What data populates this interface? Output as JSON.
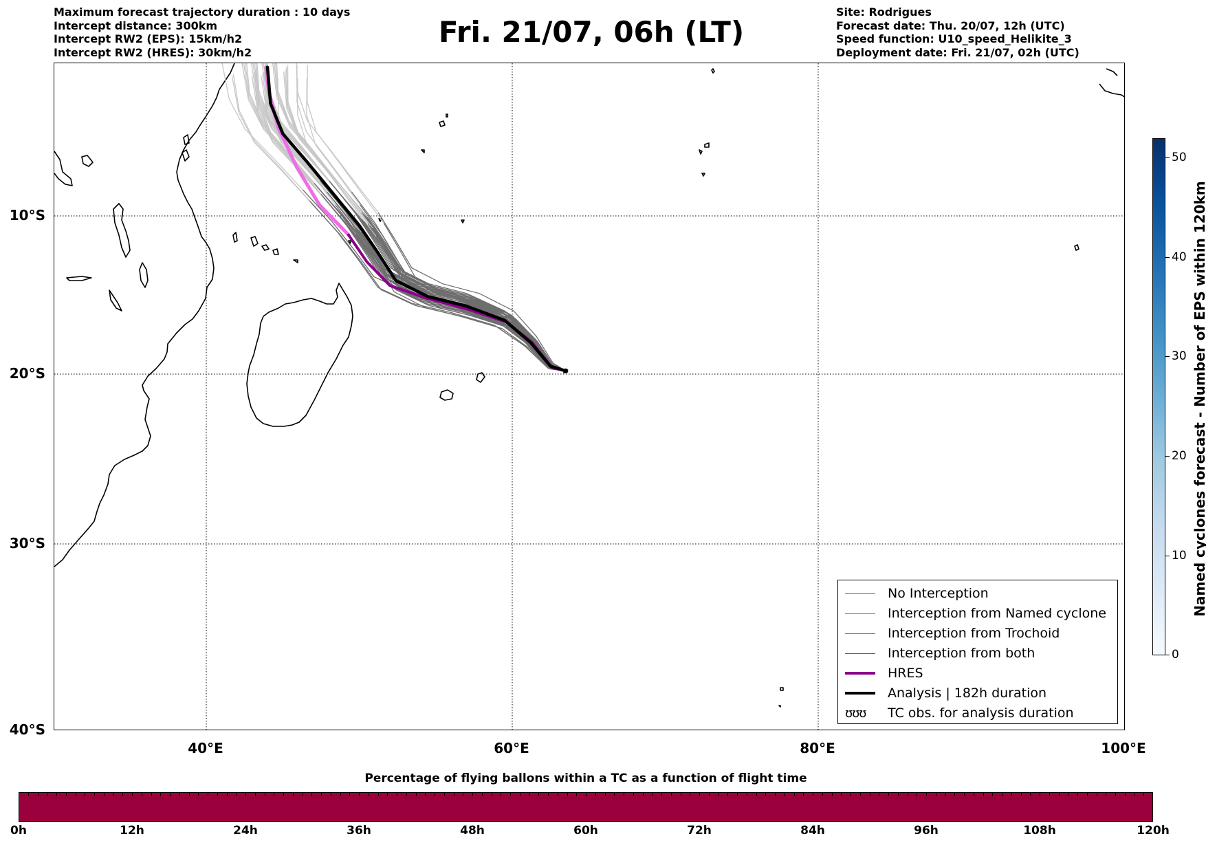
{
  "header": {
    "left_lines": [
      "Maximum forecast trajectory duration : 10 days",
      "Intercept distance: 300km",
      "Intercept RW2 (EPS):  15km/h2",
      "Intercept RW2 (HRES): 30km/h2"
    ],
    "title": "Fri. 21/07, 06h (LT)",
    "right_lines": [
      "Site: Rodrigues",
      "Forecast date: Thu. 20/07, 12h (UTC)",
      "Speed function: U10_speed_Helikite_3",
      "Deployment date: Fri. 21/07, 02h (UTC)"
    ]
  },
  "map": {
    "lat_labels": [
      "10°S",
      "20°S",
      "30°S",
      "40°S"
    ],
    "lon_labels": [
      "40°E",
      "60°E",
      "80°E",
      "100°E"
    ],
    "lon_range": [
      30,
      100
    ],
    "lat_range": [
      -40.5,
      -0.5
    ],
    "colors": {
      "eps_no_interception": "#6e6e6e",
      "eps_late": "#c8c8c8",
      "interception_named_cyclone": "#e8642c",
      "interception_trochoid": "#8a7a12",
      "interception_both": "#1f8a1f",
      "hres": "#8b008b",
      "hres_late": "#ee6ee6",
      "analysis": "#000000"
    },
    "analysis_track": [
      [
        63.5,
        -19.8
      ],
      [
        62.5,
        -19.5
      ],
      [
        61.2,
        -18.0
      ],
      [
        59.5,
        -16.6
      ],
      [
        57.0,
        -15.7
      ],
      [
        54.5,
        -15.1
      ],
      [
        52.4,
        -14.1
      ],
      [
        51.2,
        -12.3
      ],
      [
        50.0,
        -10.6
      ],
      [
        48.3,
        -8.6
      ],
      [
        46.6,
        -6.6
      ],
      [
        45.0,
        -4.8
      ],
      [
        44.2,
        -2.9
      ],
      [
        44.0,
        -0.6
      ]
    ],
    "hres_track": [
      [
        63.5,
        -19.8
      ],
      [
        62.6,
        -19.6
      ],
      [
        61.3,
        -18.0
      ],
      [
        59.6,
        -16.7
      ],
      [
        57.1,
        -15.9
      ],
      [
        54.4,
        -15.2
      ],
      [
        52.0,
        -14.4
      ],
      [
        50.5,
        -12.9
      ],
      [
        49.3,
        -11.2
      ],
      [
        47.4,
        -9.3
      ],
      [
        45.9,
        -6.9
      ],
      [
        44.7,
        -4.4
      ],
      [
        44.1,
        -2.2
      ],
      [
        43.9,
        -0.6
      ]
    ],
    "islands": [
      {
        "name": "Rodrigues",
        "lon": 63.4,
        "lat": -19.7
      },
      {
        "name": "Mauritius",
        "lon": 57.6,
        "lat": -20.3
      },
      {
        "name": "Reunion",
        "lon": 55.5,
        "lat": -21.1
      }
    ]
  },
  "legend": {
    "items": [
      {
        "label": "No Interception",
        "color": "#6e6e6e",
        "width": 1.5
      },
      {
        "label": "Interception from Named cyclone",
        "color": "#e8642c",
        "width": 1.5
      },
      {
        "label": "Interception from Trochoid",
        "color": "#8a7a12",
        "width": 1.5
      },
      {
        "label": "Interception from both",
        "color": "#1f8a1f",
        "width": 1.5
      },
      {
        "label": "HRES",
        "color": "#8b008b",
        "width": 4
      },
      {
        "label": "Analysis | 182h duration",
        "color": "#000000",
        "width": 4
      }
    ],
    "obs_symbol": "ʊʊʊ",
    "obs_label": "TC obs. for analysis duration"
  },
  "colorbar_right": {
    "label": "Named cyclones forecast - Number of EPS within 120km",
    "ticks": [
      "0",
      "10",
      "20",
      "30",
      "40",
      "50"
    ],
    "min": 0,
    "max": 52
  },
  "colorbar_bottom": {
    "title": "Percentage of flying ballons within a TC as a function of flight time",
    "ticks": [
      "0h",
      "12h",
      "24h",
      "36h",
      "48h",
      "60h",
      "72h",
      "84h",
      "96h",
      "108h",
      "120h"
    ],
    "fill_color": "#9c003c"
  }
}
